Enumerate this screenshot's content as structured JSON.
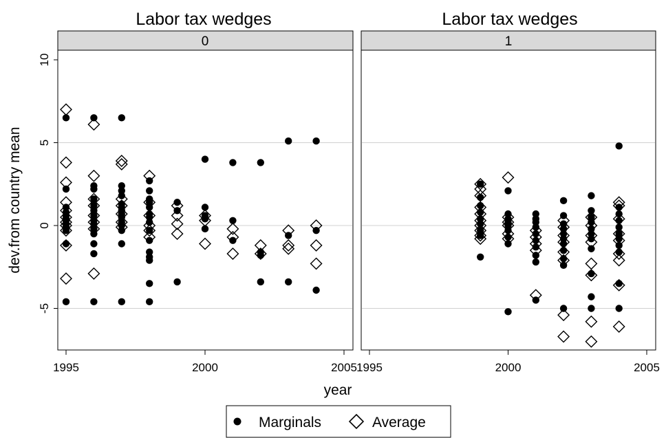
{
  "chart_data": {
    "type": "scatter",
    "x_label": "year",
    "y_label": "dev.from country mean",
    "y_ticks": [
      "-5",
      "0",
      "5",
      "10"
    ],
    "x_ticks": [
      "1995",
      "2000",
      "2005"
    ],
    "xlim": [
      1995,
      2005
    ],
    "ylim": [
      -7.5,
      10.5
    ],
    "grid": "horizontal",
    "legend_position": "bottom",
    "legend": [
      {
        "name": "Marginals",
        "marker": "filled-circle",
        "color": "#000000"
      },
      {
        "name": "Average",
        "marker": "hollow-diamond",
        "color": "#000000"
      }
    ],
    "panels": [
      {
        "title": "Labor tax wedges",
        "strip": "0",
        "series": [
          {
            "name": "Marginals",
            "points": [
              [
                1995,
                6.5
              ],
              [
                1995,
                2.2
              ],
              [
                1995,
                1.1
              ],
              [
                1995,
                0.8
              ],
              [
                1995,
                0.6
              ],
              [
                1995,
                0.4
              ],
              [
                1995,
                0.3
              ],
              [
                1995,
                0.1
              ],
              [
                1995,
                -0.1
              ],
              [
                1995,
                -0.3
              ],
              [
                1995,
                -1.1
              ],
              [
                1995,
                -4.6
              ],
              [
                1996,
                6.5
              ],
              [
                1996,
                2.4
              ],
              [
                1996,
                2.2
              ],
              [
                1996,
                1.6
              ],
              [
                1996,
                1.2
              ],
              [
                1996,
                0.9
              ],
              [
                1996,
                0.6
              ],
              [
                1996,
                0.3
              ],
              [
                1996,
                0.1
              ],
              [
                1996,
                -0.2
              ],
              [
                1996,
                -0.5
              ],
              [
                1996,
                -1.1
              ],
              [
                1996,
                -1.7
              ],
              [
                1996,
                -4.6
              ],
              [
                1997,
                6.5
              ],
              [
                1997,
                2.4
              ],
              [
                1997,
                2.1
              ],
              [
                1997,
                1.8
              ],
              [
                1997,
                1.3
              ],
              [
                1997,
                1.1
              ],
              [
                1997,
                0.9
              ],
              [
                1997,
                0.7
              ],
              [
                1997,
                0.5
              ],
              [
                1997,
                0.2
              ],
              [
                1997,
                0.0
              ],
              [
                1997,
                -0.3
              ],
              [
                1997,
                -1.1
              ],
              [
                1997,
                -4.6
              ],
              [
                1998,
                2.7
              ],
              [
                1998,
                2.1
              ],
              [
                1998,
                1.6
              ],
              [
                1998,
                1.4
              ],
              [
                1998,
                1.1
              ],
              [
                1998,
                0.7
              ],
              [
                1998,
                0.5
              ],
              [
                1998,
                0.2
              ],
              [
                1998,
                -0.3
              ],
              [
                1998,
                -0.9
              ],
              [
                1998,
                -1.6
              ],
              [
                1998,
                -1.9
              ],
              [
                1998,
                -2.1
              ],
              [
                1998,
                -3.5
              ],
              [
                1998,
                -4.6
              ],
              [
                1999,
                1.4
              ],
              [
                1999,
                0.9
              ],
              [
                1999,
                -3.4
              ],
              [
                2000,
                4.0
              ],
              [
                2000,
                1.1
              ],
              [
                2000,
                0.6
              ],
              [
                2000,
                0.4
              ],
              [
                2000,
                -0.2
              ],
              [
                2001,
                3.8
              ],
              [
                2001,
                0.3
              ],
              [
                2001,
                -0.9
              ],
              [
                2002,
                3.8
              ],
              [
                2002,
                -1.6
              ],
              [
                2002,
                -1.8
              ],
              [
                2002,
                -3.4
              ],
              [
                2003,
                5.1
              ],
              [
                2003,
                -0.6
              ],
              [
                2003,
                -3.4
              ],
              [
                2004,
                5.1
              ],
              [
                2004,
                -0.3
              ],
              [
                2004,
                -3.9
              ]
            ]
          },
          {
            "name": "Average",
            "points": [
              [
                1995,
                7.0
              ],
              [
                1995,
                3.8
              ],
              [
                1995,
                2.6
              ],
              [
                1995,
                1.4
              ],
              [
                1995,
                0.9
              ],
              [
                1995,
                0.5
              ],
              [
                1995,
                0.2
              ],
              [
                1995,
                0.0
              ],
              [
                1995,
                -0.3
              ],
              [
                1995,
                -1.2
              ],
              [
                1995,
                -3.2
              ],
              [
                1996,
                6.1
              ],
              [
                1996,
                3.0
              ],
              [
                1996,
                1.6
              ],
              [
                1996,
                1.2
              ],
              [
                1996,
                0.6
              ],
              [
                1996,
                0.2
              ],
              [
                1996,
                -0.2
              ],
              [
                1996,
                -2.9
              ],
              [
                1997,
                3.9
              ],
              [
                1997,
                3.7
              ],
              [
                1997,
                1.6
              ],
              [
                1997,
                1.2
              ],
              [
                1997,
                0.7
              ],
              [
                1997,
                0.2
              ],
              [
                1997,
                -0.1
              ],
              [
                1998,
                3.0
              ],
              [
                1998,
                1.4
              ],
              [
                1998,
                0.6
              ],
              [
                1998,
                0.0
              ],
              [
                1998,
                -0.3
              ],
              [
                1998,
                -0.7
              ],
              [
                1999,
                1.2
              ],
              [
                1999,
                0.6
              ],
              [
                1999,
                0.1
              ],
              [
                1999,
                -0.5
              ],
              [
                2000,
                0.6
              ],
              [
                2000,
                0.3
              ],
              [
                2000,
                -1.1
              ],
              [
                2001,
                -0.2
              ],
              [
                2001,
                -0.7
              ],
              [
                2001,
                -1.7
              ],
              [
                2002,
                -1.2
              ],
              [
                2002,
                -1.7
              ],
              [
                2003,
                -0.3
              ],
              [
                2003,
                -1.2
              ],
              [
                2003,
                -1.4
              ],
              [
                2004,
                0.0
              ],
              [
                2004,
                -1.2
              ],
              [
                2004,
                -2.3
              ]
            ]
          }
        ]
      },
      {
        "title": "Labor tax wedges",
        "strip": "1",
        "series": [
          {
            "name": "Marginals",
            "points": [
              [
                1999,
                2.5
              ],
              [
                1999,
                1.7
              ],
              [
                1999,
                1.2
              ],
              [
                1999,
                0.8
              ],
              [
                1999,
                0.4
              ],
              [
                1999,
                0.1
              ],
              [
                1999,
                -0.3
              ],
              [
                1999,
                -0.6
              ],
              [
                1999,
                -1.9
              ],
              [
                2000,
                2.1
              ],
              [
                2000,
                0.7
              ],
              [
                2000,
                0.4
              ],
              [
                2000,
                0.2
              ],
              [
                2000,
                0.0
              ],
              [
                2000,
                -0.3
              ],
              [
                2000,
                -0.7
              ],
              [
                2000,
                -1.1
              ],
              [
                2000,
                -5.2
              ],
              [
                2001,
                0.7
              ],
              [
                2001,
                0.4
              ],
              [
                2001,
                0.2
              ],
              [
                2001,
                -0.1
              ],
              [
                2001,
                -0.5
              ],
              [
                2001,
                -0.9
              ],
              [
                2001,
                -1.3
              ],
              [
                2001,
                -1.8
              ],
              [
                2001,
                -2.2
              ],
              [
                2001,
                -4.5
              ],
              [
                2002,
                1.5
              ],
              [
                2002,
                0.6
              ],
              [
                2002,
                0.1
              ],
              [
                2002,
                -0.2
              ],
              [
                2002,
                -0.5
              ],
              [
                2002,
                -0.8
              ],
              [
                2002,
                -1.1
              ],
              [
                2002,
                -1.5
              ],
              [
                2002,
                -2.0
              ],
              [
                2002,
                -2.4
              ],
              [
                2002,
                -5.0
              ],
              [
                2003,
                1.8
              ],
              [
                2003,
                0.9
              ],
              [
                2003,
                0.5
              ],
              [
                2003,
                0.2
              ],
              [
                2003,
                -0.2
              ],
              [
                2003,
                -0.5
              ],
              [
                2003,
                -0.8
              ],
              [
                2003,
                -1.4
              ],
              [
                2003,
                -2.9
              ],
              [
                2003,
                -4.3
              ],
              [
                2003,
                -5.0
              ],
              [
                2004,
                4.8
              ],
              [
                2004,
                1.1
              ],
              [
                2004,
                0.7
              ],
              [
                2004,
                0.3
              ],
              [
                2004,
                -0.1
              ],
              [
                2004,
                -0.5
              ],
              [
                2004,
                -0.8
              ],
              [
                2004,
                -1.2
              ],
              [
                2004,
                -1.6
              ],
              [
                2004,
                -3.5
              ],
              [
                2004,
                -5.0
              ]
            ]
          },
          {
            "name": "Average",
            "points": [
              [
                1999,
                2.5
              ],
              [
                1999,
                2.2
              ],
              [
                1999,
                1.8
              ],
              [
                1999,
                1.1
              ],
              [
                1999,
                0.7
              ],
              [
                1999,
                0.3
              ],
              [
                1999,
                0.0
              ],
              [
                1999,
                -0.3
              ],
              [
                1999,
                -0.6
              ],
              [
                1999,
                -0.8
              ],
              [
                2000,
                2.9
              ],
              [
                2000,
                0.5
              ],
              [
                2000,
                0.2
              ],
              [
                2000,
                0.0
              ],
              [
                2000,
                -0.5
              ],
              [
                2000,
                -0.8
              ],
              [
                2001,
                -0.3
              ],
              [
                2001,
                -0.7
              ],
              [
                2001,
                -1.1
              ],
              [
                2001,
                -1.5
              ],
              [
                2001,
                -4.2
              ],
              [
                2002,
                0.3
              ],
              [
                2002,
                -0.1
              ],
              [
                2002,
                -0.6
              ],
              [
                2002,
                -1.0
              ],
              [
                2002,
                -1.6
              ],
              [
                2002,
                -2.1
              ],
              [
                2002,
                -5.4
              ],
              [
                2002,
                -6.7
              ],
              [
                2003,
                0.5
              ],
              [
                2003,
                0.0
              ],
              [
                2003,
                -0.6
              ],
              [
                2003,
                -1.0
              ],
              [
                2003,
                -2.3
              ],
              [
                2003,
                -3.0
              ],
              [
                2003,
                -5.8
              ],
              [
                2003,
                -7.0
              ],
              [
                2004,
                1.4
              ],
              [
                2004,
                1.2
              ],
              [
                2004,
                0.4
              ],
              [
                2004,
                -0.5
              ],
              [
                2004,
                -0.9
              ],
              [
                2004,
                -1.7
              ],
              [
                2004,
                -2.1
              ],
              [
                2004,
                -3.6
              ],
              [
                2004,
                -6.1
              ]
            ]
          }
        ]
      }
    ]
  }
}
